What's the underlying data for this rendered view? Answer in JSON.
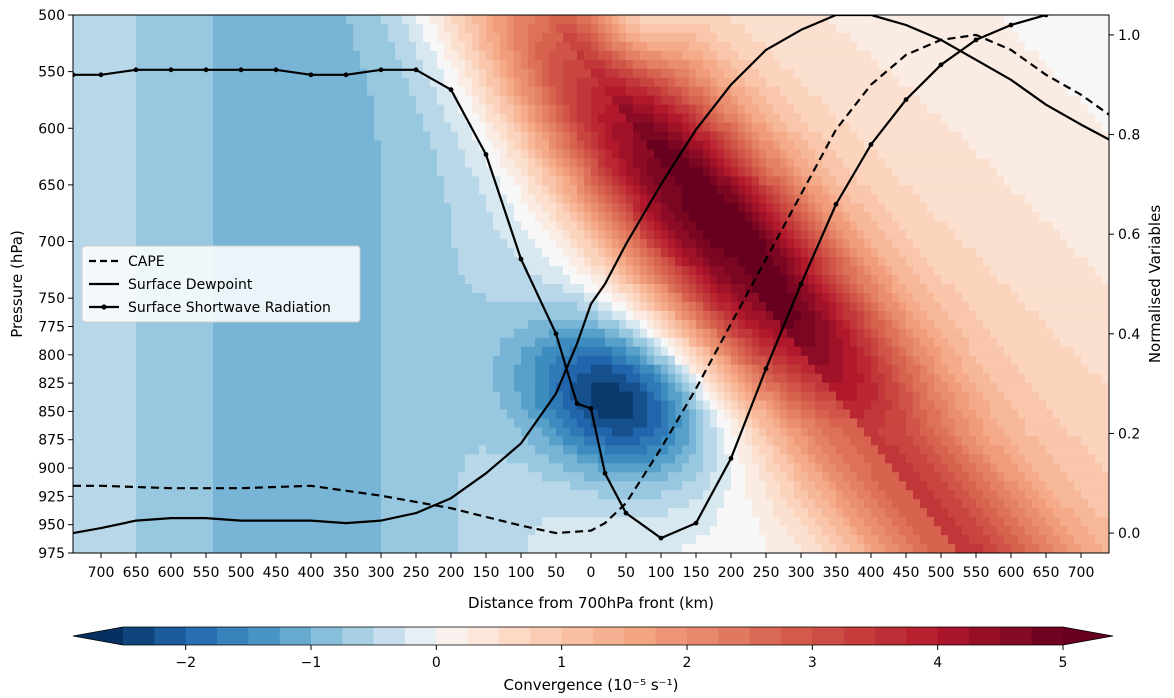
{
  "chart_data": {
    "type": "heatmap",
    "title": "",
    "xlabel": "Distance from 700hPa front (km)",
    "ylabel_left": "Pressure (hPa)",
    "ylabel_right": "Normalised Variables",
    "x_ticks": [
      700,
      650,
      600,
      550,
      500,
      450,
      400,
      350,
      300,
      250,
      200,
      150,
      100,
      50,
      0,
      50,
      100,
      150,
      200,
      250,
      300,
      350,
      400,
      450,
      500,
      550,
      600,
      650,
      700
    ],
    "x_range_signed": [
      -740,
      740
    ],
    "y_ticks": [
      500,
      550,
      600,
      650,
      700,
      750,
      775,
      800,
      825,
      850,
      875,
      900,
      925,
      950,
      975
    ],
    "y_range": [
      500,
      975
    ],
    "y2_ticks": [
      "0.0",
      "0.2",
      "0.4",
      "0.6",
      "0.8",
      "1.0"
    ],
    "y2_range": [
      -0.04,
      1.04
    ],
    "colorbar": {
      "label": "Convergence (10⁻⁵ s⁻¹)",
      "ticks": [
        "−2",
        "−1",
        "0",
        "1",
        "2",
        "3",
        "4",
        "5"
      ],
      "min": -2.5,
      "max": 5.0,
      "extend": "both"
    },
    "legend": {
      "placement": "center-left",
      "entries": [
        "CAPE",
        "Surface Dewpoint",
        "Surface Shortwave Radiation"
      ]
    },
    "series": [
      {
        "name": "CAPE",
        "style": "dashed",
        "x": [
          -740,
          -700,
          -600,
          -500,
          -400,
          -300,
          -200,
          -100,
          -50,
          0,
          20,
          50,
          100,
          150,
          200,
          250,
          300,
          350,
          400,
          450,
          500,
          550,
          600,
          650,
          700,
          740
        ],
        "y": [
          0.095,
          0.095,
          0.09,
          0.09,
          0.095,
          0.075,
          0.05,
          0.015,
          0.0,
          0.005,
          0.02,
          0.06,
          0.17,
          0.29,
          0.42,
          0.55,
          0.68,
          0.81,
          0.9,
          0.96,
          0.99,
          1.0,
          0.97,
          0.92,
          0.88,
          0.84
        ]
      },
      {
        "name": "Surface Dewpoint",
        "style": "solid",
        "x": [
          -740,
          -700,
          -650,
          -600,
          -550,
          -500,
          -450,
          -400,
          -350,
          -300,
          -250,
          -200,
          -150,
          -100,
          -50,
          -20,
          0,
          20,
          50,
          100,
          150,
          200,
          250,
          300,
          350,
          400,
          450,
          500,
          550,
          600,
          650,
          700,
          740
        ],
        "y": [
          0.0,
          0.01,
          0.025,
          0.03,
          0.03,
          0.025,
          0.025,
          0.025,
          0.02,
          0.025,
          0.04,
          0.07,
          0.12,
          0.18,
          0.28,
          0.38,
          0.46,
          0.5,
          0.58,
          0.7,
          0.81,
          0.9,
          0.97,
          1.01,
          1.04,
          1.04,
          1.02,
          0.99,
          0.95,
          0.91,
          0.86,
          0.82,
          0.79
        ]
      },
      {
        "name": "Surface Shortwave Radiation",
        "style": "solid-markers",
        "x": [
          -740,
          -700,
          -650,
          -600,
          -550,
          -500,
          -450,
          -400,
          -350,
          -300,
          -250,
          -200,
          -150,
          -100,
          -50,
          -20,
          0,
          20,
          50,
          100,
          150,
          200,
          250,
          300,
          350,
          400,
          450,
          500,
          550,
          600,
          650,
          700,
          740
        ],
        "y": [
          0.92,
          0.92,
          0.93,
          0.93,
          0.93,
          0.93,
          0.93,
          0.92,
          0.92,
          0.93,
          0.93,
          0.89,
          0.76,
          0.55,
          0.4,
          0.26,
          0.25,
          0.12,
          0.04,
          -0.01,
          0.02,
          0.15,
          0.33,
          0.5,
          0.66,
          0.78,
          0.87,
          0.94,
          0.99,
          1.02,
          1.04,
          1.06,
          1.07
        ]
      }
    ],
    "convergence_field_note": "Filled contours of convergence by distance and pressure",
    "convergence_bands": [
      {
        "x_at_500": -60,
        "x_at_975": 520,
        "halfwidth": 110,
        "peak": 5.0
      },
      {
        "x_at_500": -120,
        "x_at_975": 100,
        "halfwidth": 90,
        "peak": -2.4
      }
    ]
  }
}
